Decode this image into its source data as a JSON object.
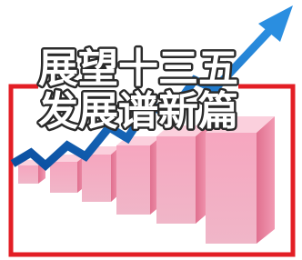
{
  "headline": {
    "line1": "展望十三五",
    "line2": "发展谱新篇"
  }
}
